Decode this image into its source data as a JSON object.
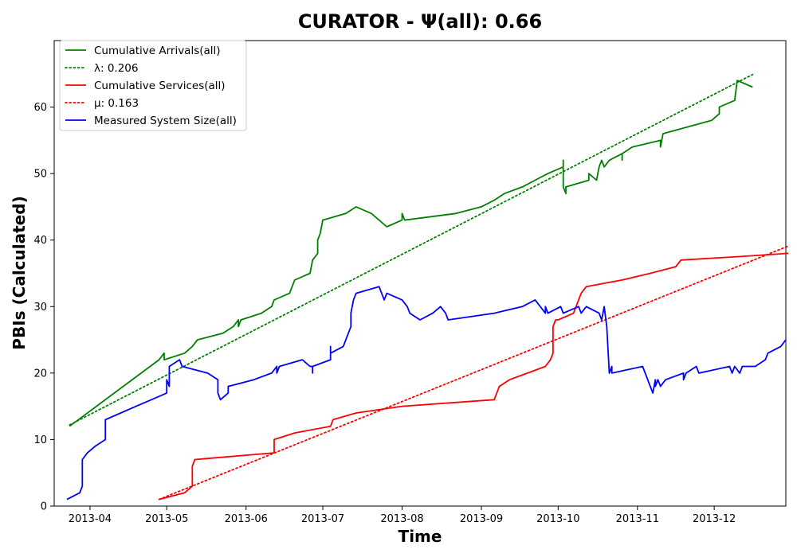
{
  "chart_data": {
    "type": "line",
    "title": "CURATOR -  Ψ(all): 0.66",
    "xlabel": "Time",
    "ylabel": "PBIs (Calculated)",
    "xlim": [
      "2013-03-18",
      "2013-12-29"
    ],
    "ylim": [
      0,
      70
    ],
    "x_ticks": [
      "2013-04-01",
      "2013-05-01",
      "2013-06-01",
      "2013-07-01",
      "2013-08-01",
      "2013-09-01",
      "2013-10-01",
      "2013-11-01",
      "2013-12-01"
    ],
    "x_tick_labels": [
      "2013-04",
      "2013-05",
      "2013-06",
      "2013-07",
      "2013-08",
      "2013-09",
      "2013-10",
      "2013-11",
      "2013-12"
    ],
    "y_ticks": [
      0,
      10,
      20,
      30,
      40,
      50,
      60
    ],
    "grid": false,
    "legend_position": "top-left",
    "series": [
      {
        "name": "Cumulative Arrivals(all)",
        "color": "#008000",
        "style": "solid",
        "points": [
          [
            "2013-03-24",
            12
          ],
          [
            "2013-04-28",
            22
          ],
          [
            "2013-04-30",
            23
          ],
          [
            "2013-04-30",
            22
          ],
          [
            "2013-05-08",
            23
          ],
          [
            "2013-05-11",
            24
          ],
          [
            "2013-05-13",
            25
          ],
          [
            "2013-05-23",
            26
          ],
          [
            "2013-05-27",
            27
          ],
          [
            "2013-05-29",
            28
          ],
          [
            "2013-05-29",
            27
          ],
          [
            "2013-05-30",
            28
          ],
          [
            "2013-06-07",
            29
          ],
          [
            "2013-06-11",
            30
          ],
          [
            "2013-06-12",
            31
          ],
          [
            "2013-06-18",
            32
          ],
          [
            "2013-06-20",
            34
          ],
          [
            "2013-06-26",
            35
          ],
          [
            "2013-06-27",
            37
          ],
          [
            "2013-06-29",
            38
          ],
          [
            "2013-06-29",
            40
          ],
          [
            "2013-06-30",
            41
          ],
          [
            "2013-07-01",
            43
          ],
          [
            "2013-07-10",
            44
          ],
          [
            "2013-07-14",
            45
          ],
          [
            "2013-07-20",
            44
          ],
          [
            "2013-07-23",
            43
          ],
          [
            "2013-07-26",
            42
          ],
          [
            "2013-08-01",
            43
          ],
          [
            "2013-08-01",
            44
          ],
          [
            "2013-08-02",
            43
          ],
          [
            "2013-08-22",
            44
          ],
          [
            "2013-09-01",
            45
          ],
          [
            "2013-09-06",
            46
          ],
          [
            "2013-09-10",
            47
          ],
          [
            "2013-09-17",
            48
          ],
          [
            "2013-09-22",
            49
          ],
          [
            "2013-09-27",
            50
          ],
          [
            "2013-10-03",
            51
          ],
          [
            "2013-10-03",
            52
          ],
          [
            "2013-10-03",
            48
          ],
          [
            "2013-10-04",
            47
          ],
          [
            "2013-10-04",
            48
          ],
          [
            "2013-10-13",
            49
          ],
          [
            "2013-10-13",
            50
          ],
          [
            "2013-10-16",
            49
          ],
          [
            "2013-10-17",
            51
          ],
          [
            "2013-10-18",
            52
          ],
          [
            "2013-10-19",
            51
          ],
          [
            "2013-10-21",
            52
          ],
          [
            "2013-10-26",
            53
          ],
          [
            "2013-10-26",
            52
          ],
          [
            "2013-10-26",
            53
          ],
          [
            "2013-10-30",
            54
          ],
          [
            "2013-11-10",
            55
          ],
          [
            "2013-11-10",
            54
          ],
          [
            "2013-11-11",
            56
          ],
          [
            "2013-11-30",
            58
          ],
          [
            "2013-12-03",
            59
          ],
          [
            "2013-12-03",
            60
          ],
          [
            "2013-12-09",
            61
          ],
          [
            "2013-12-10",
            64
          ],
          [
            "2013-12-16",
            63
          ]
        ]
      },
      {
        "name": "λ: 0.206",
        "color": "#008000",
        "style": "dotted",
        "points": [
          [
            "2013-03-24",
            12.2
          ],
          [
            "2013-12-16",
            64.9
          ]
        ]
      },
      {
        "name": "Cumulative Services(all)",
        "color": "#ff0000",
        "style": "solid",
        "points": [
          [
            "2013-04-28",
            1
          ],
          [
            "2013-05-08",
            2
          ],
          [
            "2013-05-11",
            3
          ],
          [
            "2013-05-11",
            6
          ],
          [
            "2013-05-12",
            7
          ],
          [
            "2013-06-12",
            8
          ],
          [
            "2013-06-12",
            10
          ],
          [
            "2013-06-20",
            11
          ],
          [
            "2013-07-04",
            12
          ],
          [
            "2013-07-05",
            13
          ],
          [
            "2013-07-14",
            14
          ],
          [
            "2013-08-01",
            15
          ],
          [
            "2013-09-06",
            16
          ],
          [
            "2013-09-07",
            17
          ],
          [
            "2013-09-08",
            18
          ],
          [
            "2013-09-12",
            19
          ],
          [
            "2013-09-19",
            20
          ],
          [
            "2013-09-26",
            21
          ],
          [
            "2013-09-28",
            22
          ],
          [
            "2013-09-29",
            23
          ],
          [
            "2013-09-29",
            27
          ],
          [
            "2013-09-30",
            28
          ],
          [
            "2013-10-01",
            28
          ],
          [
            "2013-10-07",
            29
          ],
          [
            "2013-10-08",
            30
          ],
          [
            "2013-10-10",
            32
          ],
          [
            "2013-10-12",
            33
          ],
          [
            "2013-10-26",
            34
          ],
          [
            "2013-11-06",
            35
          ],
          [
            "2013-11-16",
            36
          ],
          [
            "2013-11-18",
            37
          ],
          [
            "2013-12-10",
            37.5
          ],
          [
            "2013-12-30",
            38
          ]
        ]
      },
      {
        "name": "μ: 0.163",
        "color": "#ff0000",
        "style": "dotted",
        "points": [
          [
            "2013-04-28",
            1
          ],
          [
            "2013-12-30",
            39.1
          ]
        ]
      },
      {
        "name": "Measured System Size(all)",
        "color": "#0000ff",
        "style": "solid",
        "points": [
          [
            "2013-03-23",
            1
          ],
          [
            "2013-03-28",
            2
          ],
          [
            "2013-03-29",
            3
          ],
          [
            "2013-03-29",
            7
          ],
          [
            "2013-03-31",
            8
          ],
          [
            "2013-04-03",
            9
          ],
          [
            "2013-04-07",
            10
          ],
          [
            "2013-04-07",
            13
          ],
          [
            "2013-04-13",
            14
          ],
          [
            "2013-04-19",
            15
          ],
          [
            "2013-04-25",
            16
          ],
          [
            "2013-05-01",
            17
          ],
          [
            "2013-05-01",
            19
          ],
          [
            "2013-05-02",
            18
          ],
          [
            "2013-05-02",
            21
          ],
          [
            "2013-05-06",
            22
          ],
          [
            "2013-05-07",
            21
          ],
          [
            "2013-05-17",
            20
          ],
          [
            "2013-05-21",
            19
          ],
          [
            "2013-05-21",
            17
          ],
          [
            "2013-05-22",
            16
          ],
          [
            "2013-05-25",
            17
          ],
          [
            "2013-05-25",
            18
          ],
          [
            "2013-06-04",
            19
          ],
          [
            "2013-06-11",
            20
          ],
          [
            "2013-06-13",
            21
          ],
          [
            "2013-06-13",
            20
          ],
          [
            "2013-06-14",
            21
          ],
          [
            "2013-06-23",
            22
          ],
          [
            "2013-06-26",
            21
          ],
          [
            "2013-06-27",
            21
          ],
          [
            "2013-06-27",
            20
          ],
          [
            "2013-06-27",
            21
          ],
          [
            "2013-07-04",
            22
          ],
          [
            "2013-07-04",
            24
          ],
          [
            "2013-07-04",
            23
          ],
          [
            "2013-07-09",
            24
          ],
          [
            "2013-07-11",
            26
          ],
          [
            "2013-07-12",
            27
          ],
          [
            "2013-07-12",
            29
          ],
          [
            "2013-07-13",
            31
          ],
          [
            "2013-07-14",
            32
          ],
          [
            "2013-07-23",
            33
          ],
          [
            "2013-07-25",
            31
          ],
          [
            "2013-07-26",
            32
          ],
          [
            "2013-08-01",
            31
          ],
          [
            "2013-08-03",
            30
          ],
          [
            "2013-08-04",
            29
          ],
          [
            "2013-08-08",
            28
          ],
          [
            "2013-08-13",
            29
          ],
          [
            "2013-08-16",
            30
          ],
          [
            "2013-08-18",
            29
          ],
          [
            "2013-08-19",
            28
          ],
          [
            "2013-09-06",
            29
          ],
          [
            "2013-09-17",
            30
          ],
          [
            "2013-09-22",
            31
          ],
          [
            "2013-09-24",
            30
          ],
          [
            "2013-09-26",
            29
          ],
          [
            "2013-09-26",
            30
          ],
          [
            "2013-09-27",
            29
          ],
          [
            "2013-10-02",
            30
          ],
          [
            "2013-10-03",
            29
          ],
          [
            "2013-10-09",
            30
          ],
          [
            "2013-10-10",
            29
          ],
          [
            "2013-10-12",
            30
          ],
          [
            "2013-10-17",
            29
          ],
          [
            "2013-10-18",
            28
          ],
          [
            "2013-10-19",
            30
          ],
          [
            "2013-10-20",
            27
          ],
          [
            "2013-10-21",
            20
          ],
          [
            "2013-10-22",
            21
          ],
          [
            "2013-10-22",
            20
          ],
          [
            "2013-11-03",
            21
          ],
          [
            "2013-11-05",
            19
          ],
          [
            "2013-11-07",
            17
          ],
          [
            "2013-11-08",
            19
          ],
          [
            "2013-11-08",
            18
          ],
          [
            "2013-11-09",
            19
          ],
          [
            "2013-11-10",
            18
          ],
          [
            "2013-11-12",
            19
          ],
          [
            "2013-11-19",
            20
          ],
          [
            "2013-11-19",
            19
          ],
          [
            "2013-11-20",
            20
          ],
          [
            "2013-11-24",
            21
          ],
          [
            "2013-11-25",
            20
          ],
          [
            "2013-12-07",
            21
          ],
          [
            "2013-12-08",
            20
          ],
          [
            "2013-12-09",
            21
          ],
          [
            "2013-12-11",
            20
          ],
          [
            "2013-12-12",
            21
          ],
          [
            "2013-12-17",
            21
          ],
          [
            "2013-12-21",
            22
          ],
          [
            "2013-12-22",
            23
          ],
          [
            "2013-12-27",
            24
          ],
          [
            "2013-12-27",
            24
          ],
          [
            "2013-12-29",
            25
          ]
        ]
      }
    ]
  }
}
